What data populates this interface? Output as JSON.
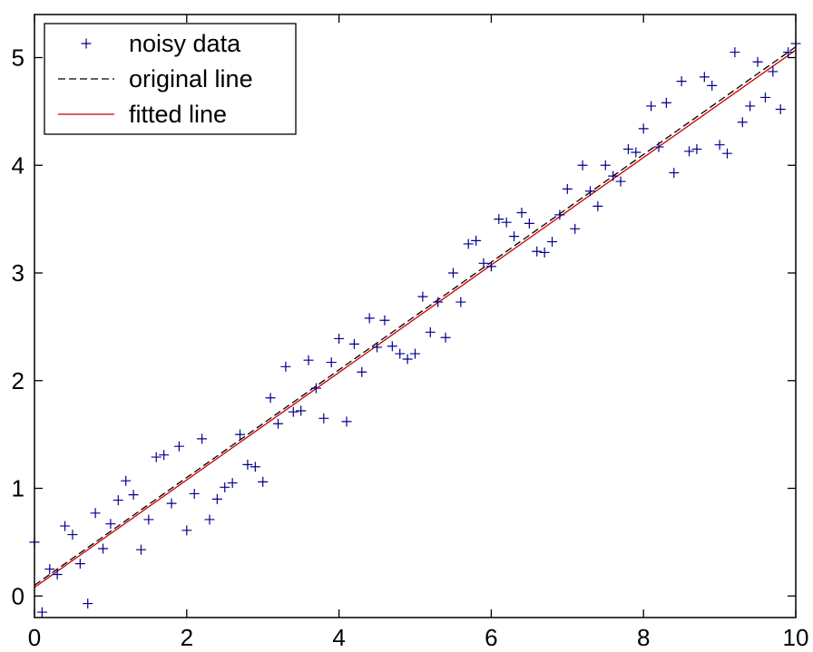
{
  "chart_data": {
    "type": "scatter",
    "title": "",
    "xlabel": "",
    "ylabel": "",
    "xlim": [
      0,
      10
    ],
    "ylim": [
      -0.2,
      5.4
    ],
    "xticks": [
      0,
      2,
      4,
      6,
      8,
      10
    ],
    "yticks": [
      0,
      1,
      2,
      3,
      4,
      5
    ],
    "grid": false,
    "legend_position": "top-left",
    "legend": [
      {
        "label": "noisy data",
        "style": "marker-plus",
        "color": "#00008b"
      },
      {
        "label": "original line",
        "style": "dashed",
        "color": "#000000"
      },
      {
        "label": "fitted line",
        "style": "solid",
        "color": "#cc0000"
      }
    ],
    "series": [
      {
        "name": "noisy data",
        "kind": "scatter",
        "marker": "+",
        "color": "#00008b",
        "x": [
          0.0,
          0.1,
          0.2,
          0.3,
          0.4,
          0.5,
          0.6,
          0.7,
          0.8,
          0.9,
          1.0,
          1.1,
          1.2,
          1.3,
          1.4,
          1.5,
          1.6,
          1.7,
          1.8,
          1.9,
          2.0,
          2.1,
          2.2,
          2.3,
          2.4,
          2.5,
          2.6,
          2.7,
          2.8,
          2.9,
          3.0,
          3.1,
          3.2,
          3.3,
          3.4,
          3.5,
          3.6,
          3.7,
          3.8,
          3.9,
          4.0,
          4.1,
          4.2,
          4.3,
          4.4,
          4.5,
          4.6,
          4.7,
          4.8,
          4.9,
          5.0,
          5.1,
          5.2,
          5.3,
          5.4,
          5.5,
          5.6,
          5.7,
          5.8,
          5.9,
          6.0,
          6.1,
          6.2,
          6.3,
          6.4,
          6.5,
          6.6,
          6.7,
          6.8,
          6.9,
          7.0,
          7.1,
          7.2,
          7.3,
          7.4,
          7.5,
          7.6,
          7.7,
          7.8,
          7.9,
          8.0,
          8.1,
          8.2,
          8.3,
          8.4,
          8.5,
          8.6,
          8.7,
          8.8,
          8.9,
          9.0,
          9.1,
          9.2,
          9.3,
          9.4,
          9.5,
          9.6,
          9.7,
          9.8,
          9.9,
          10.0
        ],
        "y": [
          0.5,
          -0.15,
          0.25,
          0.2,
          0.65,
          0.57,
          0.3,
          -0.07,
          0.77,
          0.44,
          0.67,
          0.89,
          1.07,
          0.94,
          0.43,
          0.71,
          1.29,
          1.31,
          0.86,
          1.39,
          0.61,
          0.95,
          1.46,
          0.71,
          0.9,
          1.01,
          1.05,
          1.5,
          1.22,
          1.2,
          1.06,
          1.84,
          1.6,
          2.13,
          1.71,
          1.72,
          2.19,
          1.93,
          1.65,
          2.17,
          2.39,
          1.62,
          2.34,
          2.08,
          2.58,
          2.31,
          2.56,
          2.32,
          2.25,
          2.2,
          2.25,
          2.78,
          2.45,
          2.73,
          2.4,
          3.0,
          2.73,
          3.27,
          3.3,
          3.09,
          3.06,
          3.5,
          3.47,
          3.34,
          3.56,
          3.46,
          3.2,
          3.19,
          3.29,
          3.54,
          3.78,
          3.41,
          4.0,
          3.76,
          3.62,
          4.0,
          3.9,
          3.85,
          4.15,
          4.12,
          4.34,
          4.55,
          4.17,
          4.58,
          3.93,
          4.78,
          4.13,
          4.15,
          4.82,
          4.74,
          4.19,
          4.11,
          5.05,
          4.4,
          4.55,
          4.96,
          4.63,
          4.87,
          4.52,
          5.05,
          5.13
        ]
      },
      {
        "name": "original line",
        "kind": "line",
        "dash": "dashed",
        "color": "#000000",
        "x": [
          0,
          10
        ],
        "y": [
          0.1,
          5.1
        ]
      },
      {
        "name": "fitted line",
        "kind": "line",
        "dash": "solid",
        "color": "#cc0000",
        "x": [
          0,
          10
        ],
        "y": [
          0.08,
          5.07
        ]
      }
    ]
  }
}
